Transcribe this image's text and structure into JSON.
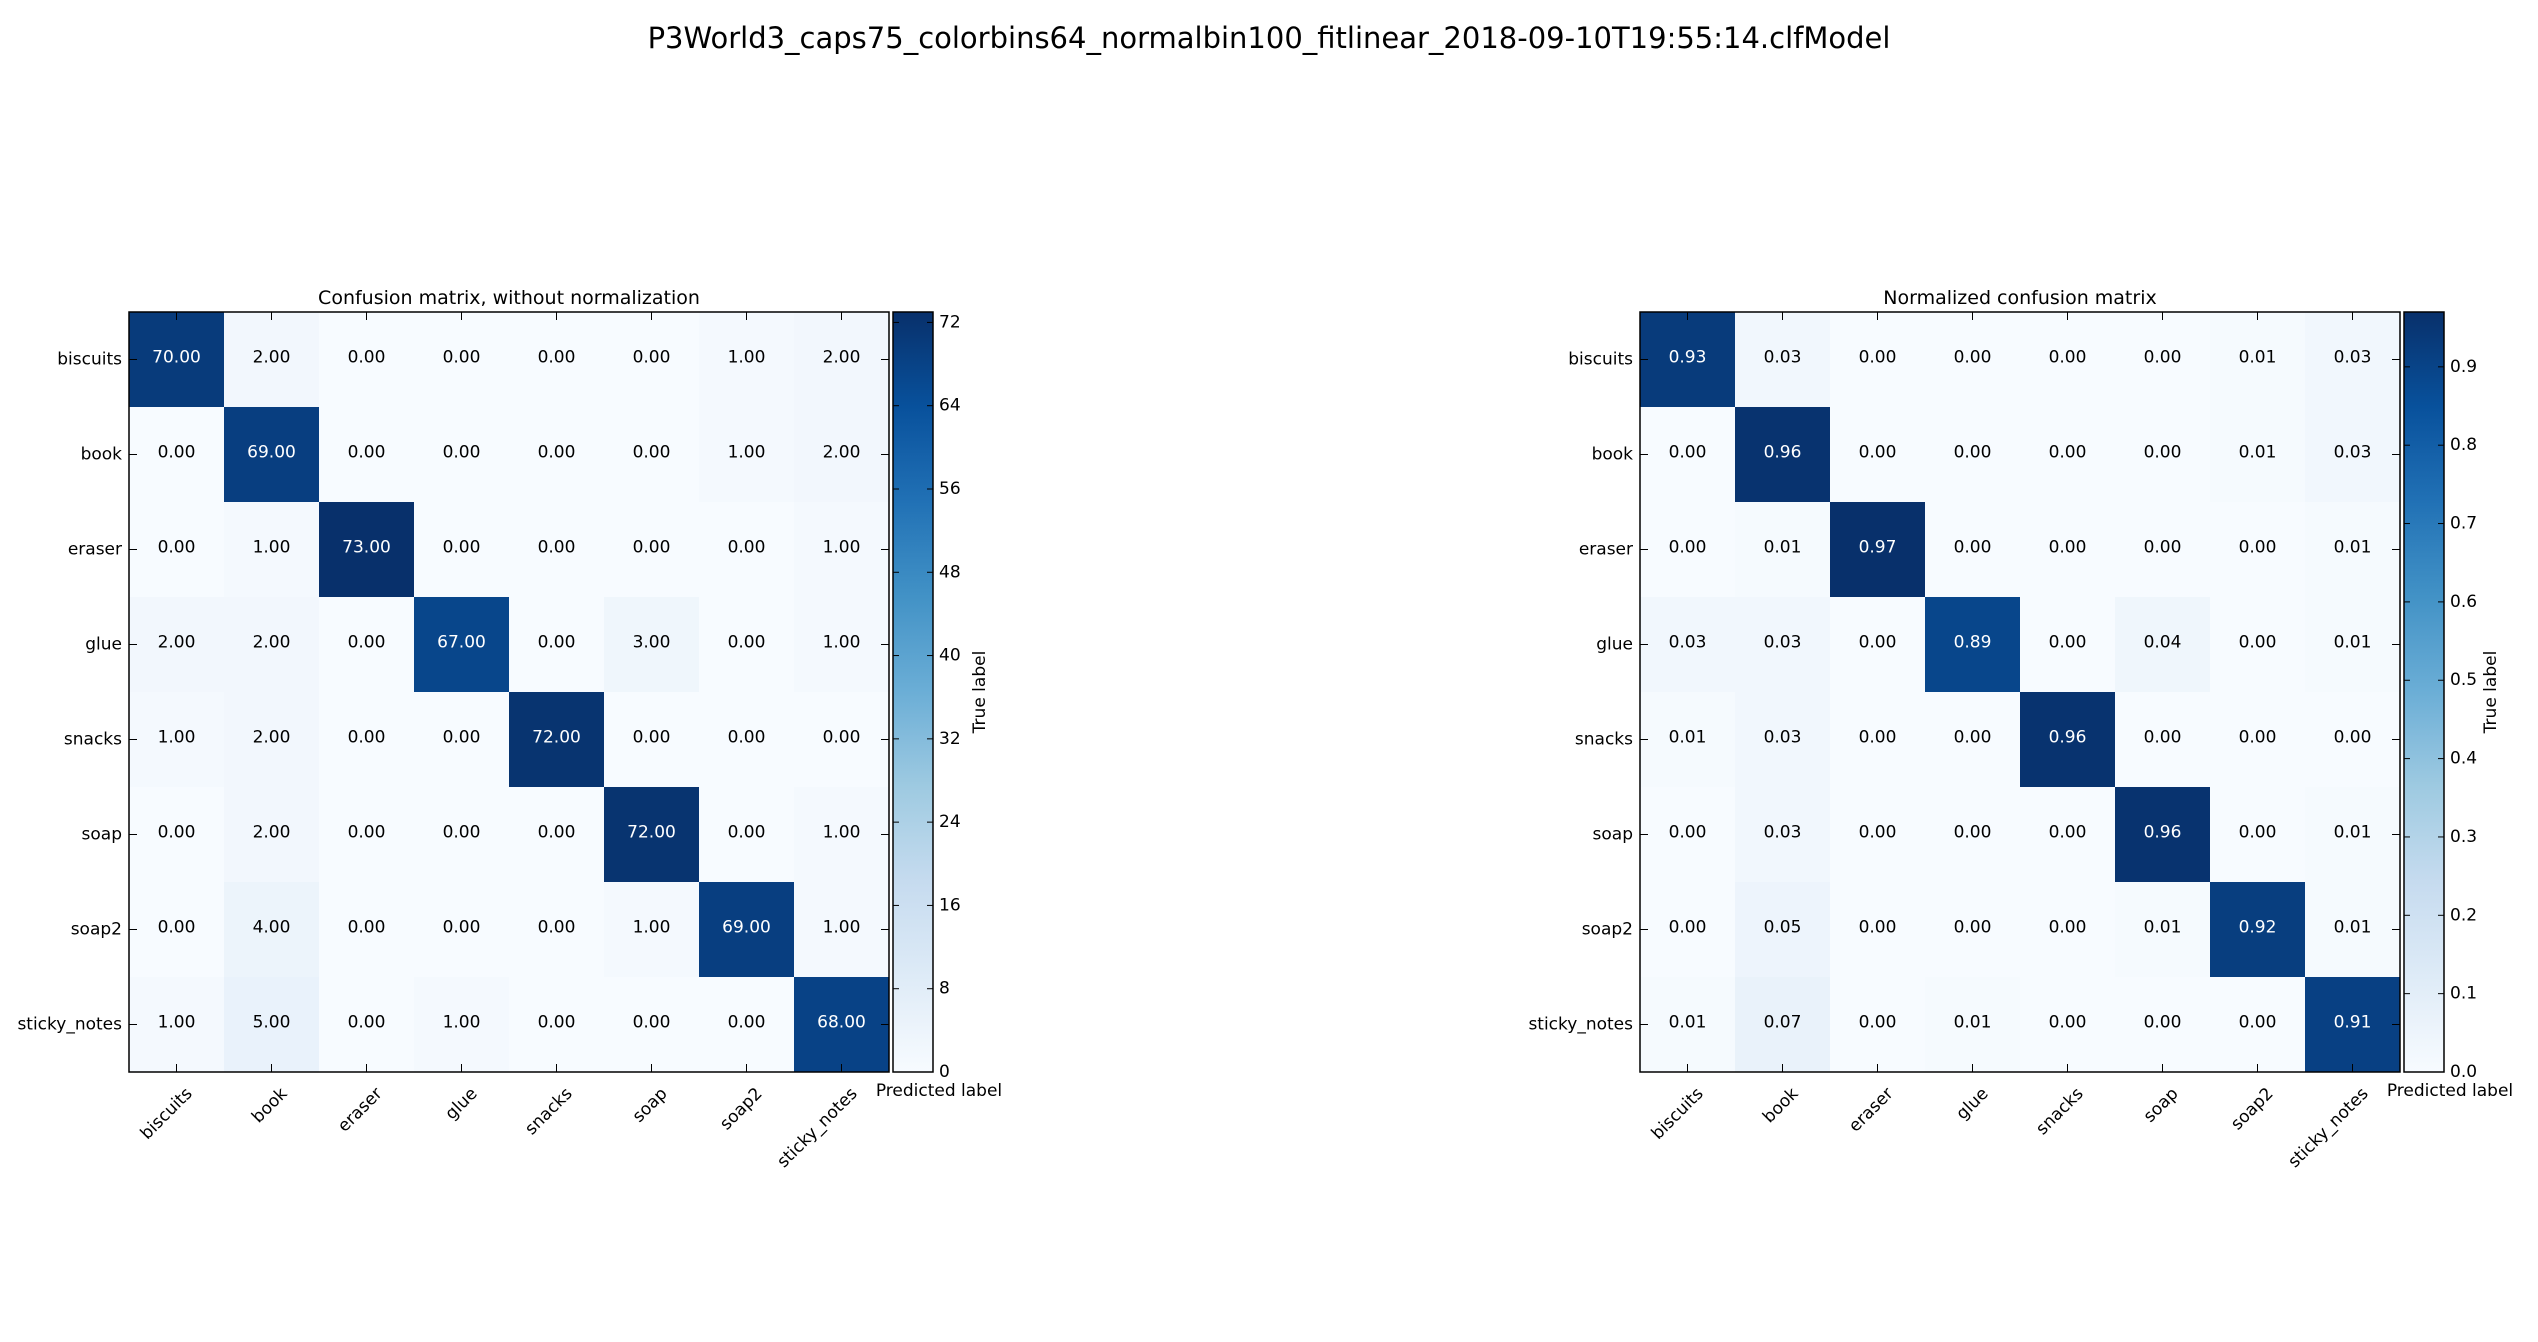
{
  "figure": {
    "suptitle": "P3World3_caps75_colorbins64_normalbin100_fitlinear_2018-09-10T19:55:14.clfModel"
  },
  "chart_data": [
    {
      "type": "heatmap",
      "title": "Confusion matrix, without normalization",
      "xlabel": "Predicted label",
      "ylabel": "True label",
      "x_categories": [
        "biscuits",
        "book",
        "eraser",
        "glue",
        "snacks",
        "soap",
        "soap2",
        "sticky_notes"
      ],
      "y_categories": [
        "biscuits",
        "book",
        "eraser",
        "glue",
        "snacks",
        "soap",
        "soap2",
        "sticky_notes"
      ],
      "values": [
        [
          70,
          2,
          0,
          0,
          0,
          0,
          1,
          2
        ],
        [
          0,
          69,
          0,
          0,
          0,
          0,
          1,
          2
        ],
        [
          0,
          1,
          73,
          0,
          0,
          0,
          0,
          1
        ],
        [
          2,
          2,
          0,
          67,
          0,
          3,
          0,
          1
        ],
        [
          1,
          2,
          0,
          0,
          72,
          0,
          0,
          0
        ],
        [
          0,
          2,
          0,
          0,
          0,
          72,
          0,
          1
        ],
        [
          0,
          4,
          0,
          0,
          0,
          1,
          69,
          1
        ],
        [
          1,
          5,
          0,
          1,
          0,
          0,
          0,
          68
        ]
      ],
      "decimals": 2,
      "colormap": "Blues",
      "colorbar": {
        "vmin": 0,
        "vmax": 73,
        "ticks": [
          0,
          8,
          16,
          24,
          32,
          40,
          48,
          56,
          64,
          72
        ],
        "tick_decimals": 0
      }
    },
    {
      "type": "heatmap",
      "title": "Normalized confusion matrix",
      "xlabel": "Predicted label",
      "ylabel": "True label",
      "x_categories": [
        "biscuits",
        "book",
        "eraser",
        "glue",
        "snacks",
        "soap",
        "soap2",
        "sticky_notes"
      ],
      "y_categories": [
        "biscuits",
        "book",
        "eraser",
        "glue",
        "snacks",
        "soap",
        "soap2",
        "sticky_notes"
      ],
      "values": [
        [
          0.93,
          0.03,
          0.0,
          0.0,
          0.0,
          0.0,
          0.01,
          0.03
        ],
        [
          0.0,
          0.96,
          0.0,
          0.0,
          0.0,
          0.0,
          0.01,
          0.03
        ],
        [
          0.0,
          0.01,
          0.97,
          0.0,
          0.0,
          0.0,
          0.0,
          0.01
        ],
        [
          0.03,
          0.03,
          0.0,
          0.89,
          0.0,
          0.04,
          0.0,
          0.01
        ],
        [
          0.01,
          0.03,
          0.0,
          0.0,
          0.96,
          0.0,
          0.0,
          0.0
        ],
        [
          0.0,
          0.03,
          0.0,
          0.0,
          0.0,
          0.96,
          0.0,
          0.01
        ],
        [
          0.0,
          0.05,
          0.0,
          0.0,
          0.0,
          0.01,
          0.92,
          0.01
        ],
        [
          0.01,
          0.07,
          0.0,
          0.01,
          0.0,
          0.0,
          0.0,
          0.91
        ]
      ],
      "decimals": 2,
      "colormap": "Blues",
      "colorbar": {
        "vmin": 0,
        "vmax": 0.97,
        "ticks": [
          0.0,
          0.1,
          0.2,
          0.3,
          0.4,
          0.5,
          0.6,
          0.7,
          0.8,
          0.9
        ],
        "tick_decimals": 1
      }
    }
  ]
}
